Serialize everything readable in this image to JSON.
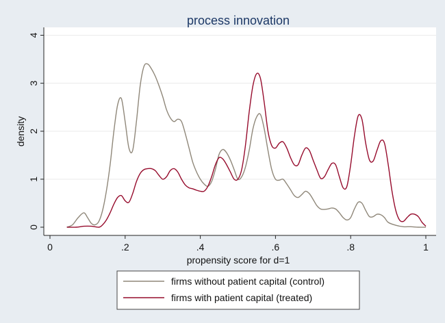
{
  "chart_data": {
    "type": "line",
    "title": "process innovation",
    "xlabel": "propensity score for d=1",
    "ylabel": "density",
    "xlim": [
      0,
      1
    ],
    "ylim": [
      0,
      4.2
    ],
    "x_ticks": [
      0,
      0.2,
      0.4,
      0.6,
      0.8,
      1
    ],
    "x_tick_labels": [
      "0",
      ".2",
      ".4",
      ".6",
      ".8",
      "1"
    ],
    "y_ticks": [
      0,
      1,
      2,
      3,
      4
    ],
    "y_tick_labels": [
      "0",
      "1",
      "2",
      "3",
      "4"
    ],
    "grid": "horizontal",
    "legend_position": "bottom",
    "series": [
      {
        "name": "firms without patient capital (control)",
        "color": "#8f8779",
        "x": [
          0.045,
          0.06,
          0.075,
          0.09,
          0.1,
          0.11,
          0.12,
          0.13,
          0.14,
          0.15,
          0.16,
          0.17,
          0.18,
          0.19,
          0.2,
          0.21,
          0.22,
          0.23,
          0.24,
          0.25,
          0.26,
          0.27,
          0.28,
          0.29,
          0.3,
          0.31,
          0.32,
          0.33,
          0.34,
          0.35,
          0.36,
          0.37,
          0.38,
          0.39,
          0.4,
          0.41,
          0.42,
          0.43,
          0.44,
          0.45,
          0.46,
          0.47,
          0.48,
          0.49,
          0.5,
          0.51,
          0.52,
          0.53,
          0.54,
          0.55,
          0.56,
          0.57,
          0.58,
          0.59,
          0.6,
          0.61,
          0.62,
          0.63,
          0.64,
          0.65,
          0.66,
          0.67,
          0.68,
          0.69,
          0.7,
          0.71,
          0.72,
          0.73,
          0.74,
          0.75,
          0.76,
          0.77,
          0.78,
          0.79,
          0.8,
          0.81,
          0.82,
          0.83,
          0.84,
          0.85,
          0.86,
          0.87,
          0.88,
          0.89,
          0.9,
          0.92,
          0.94,
          0.96,
          0.98,
          1.0
        ],
        "values": [
          0.0,
          0.05,
          0.2,
          0.3,
          0.2,
          0.08,
          0.05,
          0.12,
          0.35,
          0.75,
          1.3,
          2.0,
          2.55,
          2.68,
          2.2,
          1.65,
          1.6,
          2.2,
          2.95,
          3.35,
          3.4,
          3.3,
          3.15,
          2.95,
          2.72,
          2.45,
          2.28,
          2.2,
          2.25,
          2.2,
          1.95,
          1.65,
          1.35,
          1.15,
          1.0,
          0.9,
          0.85,
          0.95,
          1.2,
          1.52,
          1.62,
          1.55,
          1.4,
          1.2,
          1.0,
          1.05,
          1.25,
          1.6,
          2.05,
          2.3,
          2.35,
          2.05,
          1.6,
          1.2,
          1.0,
          0.98,
          1.0,
          0.9,
          0.78,
          0.66,
          0.62,
          0.68,
          0.75,
          0.7,
          0.58,
          0.45,
          0.38,
          0.37,
          0.38,
          0.4,
          0.38,
          0.3,
          0.2,
          0.15,
          0.2,
          0.38,
          0.52,
          0.5,
          0.35,
          0.22,
          0.22,
          0.27,
          0.26,
          0.2,
          0.1,
          0.04,
          0.01,
          0.01,
          0.0,
          0.0
        ]
      },
      {
        "name": "firms with patient capital (treated)",
        "color": "#960b2c",
        "x": [
          0.045,
          0.07,
          0.09,
          0.11,
          0.13,
          0.14,
          0.15,
          0.16,
          0.17,
          0.18,
          0.19,
          0.2,
          0.21,
          0.22,
          0.23,
          0.24,
          0.25,
          0.26,
          0.27,
          0.28,
          0.29,
          0.3,
          0.31,
          0.32,
          0.33,
          0.34,
          0.35,
          0.36,
          0.37,
          0.38,
          0.39,
          0.4,
          0.41,
          0.42,
          0.43,
          0.44,
          0.45,
          0.46,
          0.47,
          0.48,
          0.49,
          0.5,
          0.51,
          0.52,
          0.53,
          0.54,
          0.55,
          0.56,
          0.57,
          0.58,
          0.59,
          0.6,
          0.61,
          0.62,
          0.63,
          0.64,
          0.65,
          0.66,
          0.67,
          0.68,
          0.69,
          0.7,
          0.71,
          0.72,
          0.73,
          0.74,
          0.75,
          0.76,
          0.77,
          0.78,
          0.79,
          0.8,
          0.81,
          0.82,
          0.83,
          0.84,
          0.85,
          0.86,
          0.87,
          0.88,
          0.89,
          0.9,
          0.91,
          0.92,
          0.93,
          0.94,
          0.95,
          0.96,
          0.97,
          0.98,
          0.99,
          1.0
        ],
        "values": [
          0.0,
          0.0,
          0.02,
          0.02,
          0.0,
          0.05,
          0.15,
          0.3,
          0.48,
          0.62,
          0.66,
          0.55,
          0.52,
          0.7,
          0.95,
          1.12,
          1.2,
          1.22,
          1.22,
          1.18,
          1.08,
          1.0,
          1.05,
          1.18,
          1.22,
          1.15,
          1.0,
          0.88,
          0.82,
          0.8,
          0.77,
          0.75,
          0.75,
          0.85,
          1.05,
          1.3,
          1.45,
          1.42,
          1.3,
          1.15,
          1.0,
          1.0,
          1.2,
          1.7,
          2.4,
          2.95,
          3.2,
          3.1,
          2.6,
          2.0,
          1.7,
          1.65,
          1.75,
          1.78,
          1.65,
          1.45,
          1.3,
          1.3,
          1.5,
          1.65,
          1.6,
          1.4,
          1.2,
          1.02,
          1.05,
          1.2,
          1.33,
          1.3,
          1.05,
          0.82,
          0.85,
          1.3,
          1.9,
          2.32,
          2.25,
          1.75,
          1.4,
          1.38,
          1.6,
          1.8,
          1.75,
          1.3,
          0.75,
          0.35,
          0.15,
          0.12,
          0.2,
          0.27,
          0.27,
          0.22,
          0.1,
          0.02
        ]
      }
    ]
  }
}
